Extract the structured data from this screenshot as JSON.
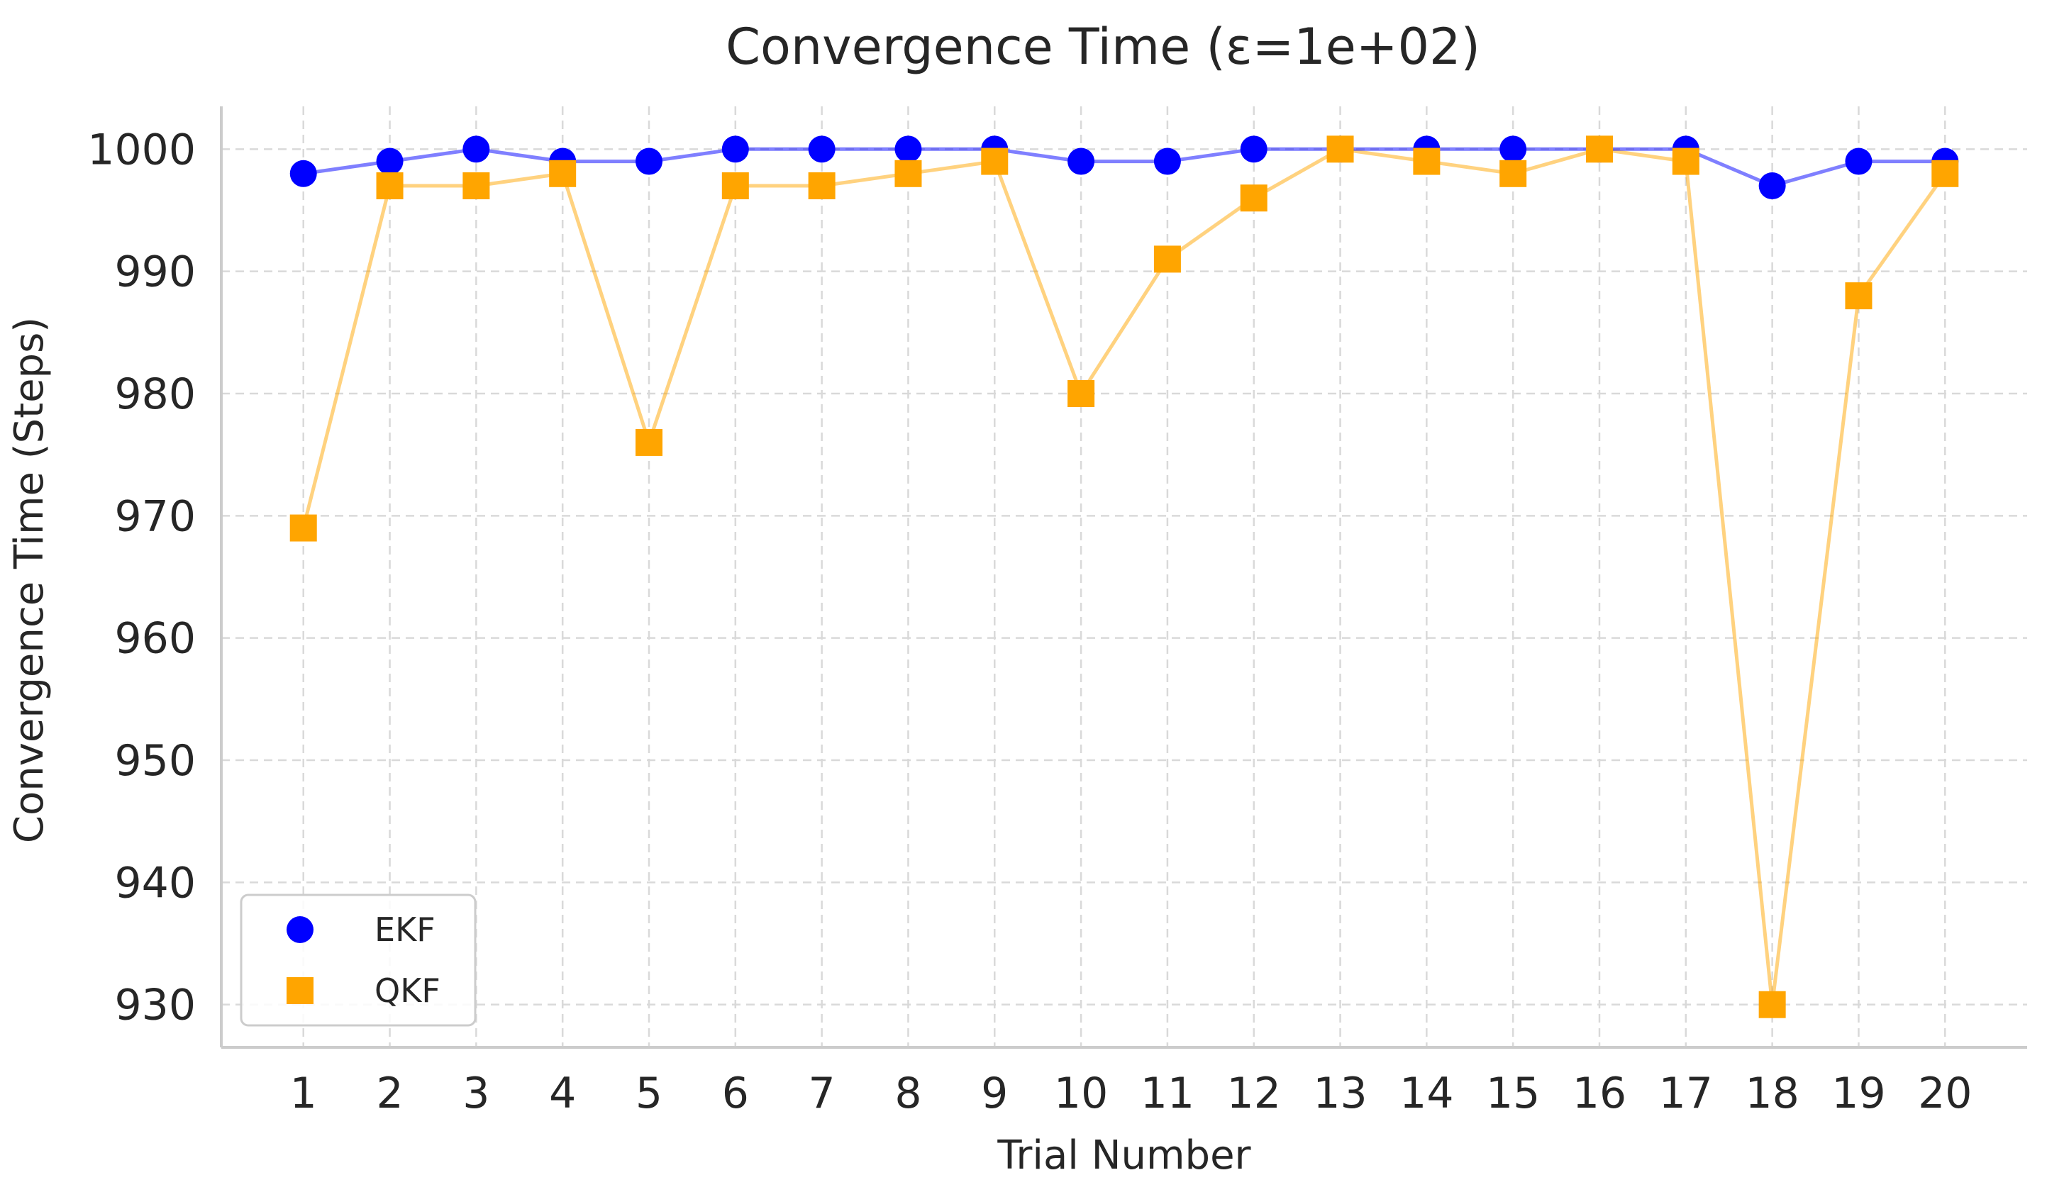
{
  "chart_data": {
    "type": "line",
    "title": "Convergence Time (ε=1e+02)",
    "xlabel": "Trial Number",
    "ylabel": "Convergence Time (Steps)",
    "x": [
      1,
      2,
      3,
      4,
      5,
      6,
      7,
      8,
      9,
      10,
      11,
      12,
      13,
      14,
      15,
      16,
      17,
      18,
      19,
      20
    ],
    "xlim": [
      0.05,
      20.95
    ],
    "ylim": [
      926.5,
      1003.5
    ],
    "yticks": [
      930,
      940,
      950,
      960,
      970,
      980,
      990,
      1000
    ],
    "grid": true,
    "legend_position": "bottom-left",
    "series": [
      {
        "name": "EKF",
        "marker": "circle",
        "color": "#0000ff",
        "values": [
          998,
          999,
          1000,
          999,
          999,
          1000,
          1000,
          1000,
          1000,
          999,
          999,
          1000,
          1000,
          1000,
          1000,
          1000,
          1000,
          997,
          999,
          999
        ]
      },
      {
        "name": "QKF",
        "marker": "square",
        "color": "#ffa500",
        "values": [
          969,
          997,
          997,
          998,
          976,
          997,
          997,
          998,
          999,
          980,
          991,
          996,
          1000,
          999,
          998,
          1000,
          999,
          930,
          988,
          998
        ]
      }
    ]
  }
}
